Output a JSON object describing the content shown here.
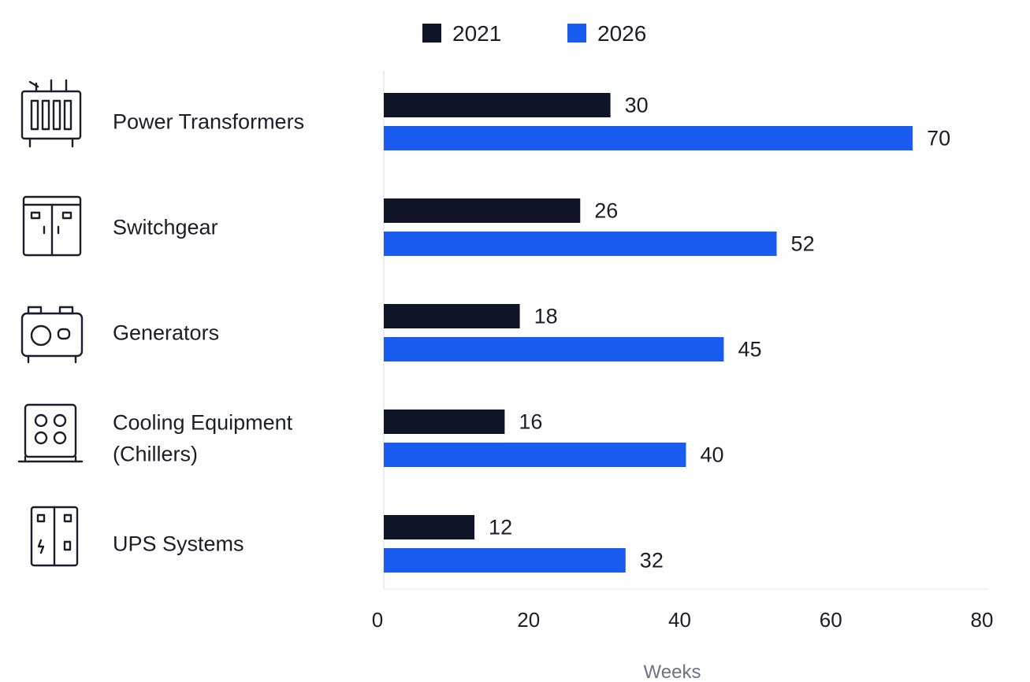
{
  "chart_data": {
    "type": "bar",
    "orientation": "horizontal",
    "categories": [
      "Power Transformers",
      "Switchgear",
      "Generators",
      "Cooling Equipment (Chillers)",
      "UPS Systems"
    ],
    "category_lines": [
      [
        "Power Transformers"
      ],
      [
        "Switchgear"
      ],
      [
        "Generators"
      ],
      [
        "Cooling Equipment",
        "(Chillers)"
      ],
      [
        "UPS Systems"
      ]
    ],
    "category_icons": [
      "transformer-icon",
      "switchgear-icon",
      "generator-icon",
      "chiller-icon",
      "ups-icon"
    ],
    "series": [
      {
        "name": "2021",
        "color": "#0f1426",
        "values": [
          30,
          26,
          18,
          16,
          12
        ]
      },
      {
        "name": "2026",
        "color": "#1a5cf0",
        "values": [
          70,
          52,
          45,
          40,
          32
        ]
      }
    ],
    "xlabel": "Weeks",
    "xlim": [
      0,
      80
    ],
    "xticks": [
      0,
      20,
      40,
      60,
      80
    ],
    "legend_position": "top",
    "grid": false
  }
}
